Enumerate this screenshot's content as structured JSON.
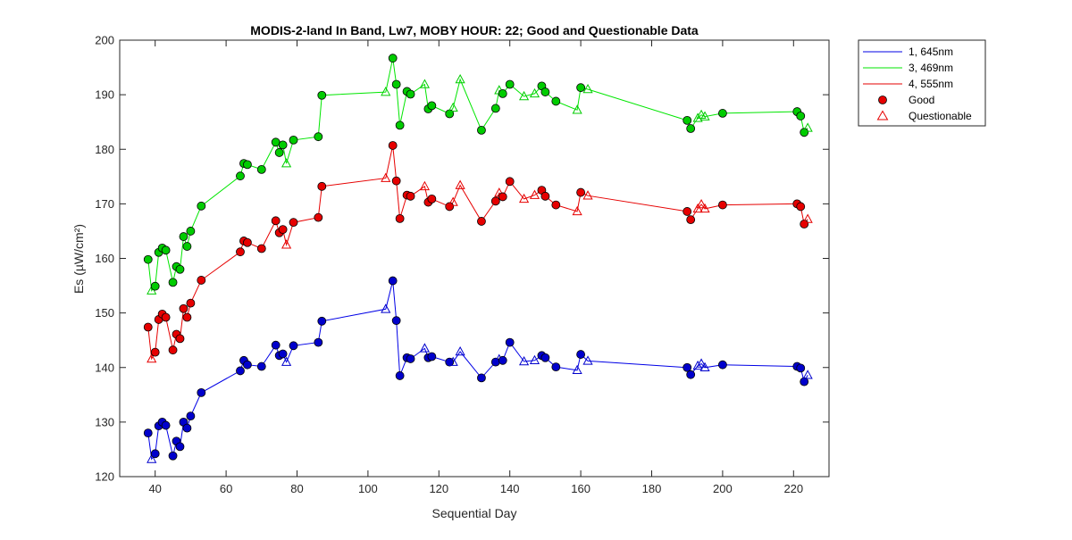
{
  "chart_data": {
    "type": "line",
    "title": "MODIS-2-land In Band,  Lw7, MOBY HOUR: 22;  Good and Questionable Data",
    "xlabel": "Sequential Day",
    "ylabel": "Es (µW/cm²)",
    "xlim": [
      30,
      230
    ],
    "ylim": [
      120,
      200
    ],
    "xticks": [
      40,
      60,
      80,
      100,
      120,
      140,
      160,
      180,
      200,
      220
    ],
    "yticks": [
      120,
      130,
      140,
      150,
      160,
      170,
      180,
      190,
      200
    ],
    "grid": false,
    "legend_position": "outside-top-right",
    "legend": {
      "good_label": "Good",
      "questionable_label": "Questionable"
    },
    "series": [
      {
        "name": "1, 645nm",
        "line_color": "#0000e6",
        "marker_color": "#0000cc",
        "points": [
          {
            "x": 38,
            "y": 128.0,
            "q": false
          },
          {
            "x": 39,
            "y": 123.2,
            "q": true
          },
          {
            "x": 40,
            "y": 124.2,
            "q": false
          },
          {
            "x": 41,
            "y": 129.3,
            "q": false
          },
          {
            "x": 42,
            "y": 130.0,
            "q": false
          },
          {
            "x": 43,
            "y": 129.4,
            "q": false
          },
          {
            "x": 45,
            "y": 123.8,
            "q": false
          },
          {
            "x": 46,
            "y": 126.5,
            "q": false
          },
          {
            "x": 47,
            "y": 125.5,
            "q": false
          },
          {
            "x": 48,
            "y": 130.0,
            "q": false
          },
          {
            "x": 49,
            "y": 128.9,
            "q": false
          },
          {
            "x": 50,
            "y": 131.1,
            "q": false
          },
          {
            "x": 53,
            "y": 135.4,
            "q": false
          },
          {
            "x": 64,
            "y": 139.4,
            "q": false
          },
          {
            "x": 65,
            "y": 141.3,
            "q": false
          },
          {
            "x": 66,
            "y": 140.5,
            "q": false
          },
          {
            "x": 70,
            "y": 140.2,
            "q": false
          },
          {
            "x": 74,
            "y": 144.1,
            "q": false
          },
          {
            "x": 75,
            "y": 142.2,
            "q": false
          },
          {
            "x": 76,
            "y": 142.5,
            "q": false
          },
          {
            "x": 77,
            "y": 141.0,
            "q": true
          },
          {
            "x": 79,
            "y": 144.0,
            "q": false
          },
          {
            "x": 86,
            "y": 144.6,
            "q": false
          },
          {
            "x": 87,
            "y": 148.5,
            "q": false
          },
          {
            "x": 105,
            "y": 150.7,
            "q": true
          },
          {
            "x": 107,
            "y": 155.9,
            "q": false
          },
          {
            "x": 108,
            "y": 148.6,
            "q": false
          },
          {
            "x": 109,
            "y": 138.5,
            "q": false
          },
          {
            "x": 111,
            "y": 141.8,
            "q": false
          },
          {
            "x": 112,
            "y": 141.6,
            "q": false
          },
          {
            "x": 116,
            "y": 143.5,
            "q": true
          },
          {
            "x": 117,
            "y": 141.8,
            "q": false
          },
          {
            "x": 118,
            "y": 142.0,
            "q": false
          },
          {
            "x": 123,
            "y": 141.0,
            "q": false
          },
          {
            "x": 124,
            "y": 141.0,
            "q": true
          },
          {
            "x": 126,
            "y": 142.9,
            "q": true
          },
          {
            "x": 132,
            "y": 138.1,
            "q": false
          },
          {
            "x": 136,
            "y": 141.0,
            "q": false
          },
          {
            "x": 137,
            "y": 141.5,
            "q": true
          },
          {
            "x": 138,
            "y": 141.3,
            "q": false
          },
          {
            "x": 140,
            "y": 144.6,
            "q": false
          },
          {
            "x": 144,
            "y": 141.1,
            "q": true
          },
          {
            "x": 147,
            "y": 141.3,
            "q": true
          },
          {
            "x": 149,
            "y": 142.2,
            "q": false
          },
          {
            "x": 150,
            "y": 141.8,
            "q": false
          },
          {
            "x": 153,
            "y": 140.1,
            "q": false
          },
          {
            "x": 159,
            "y": 139.5,
            "q": true
          },
          {
            "x": 160,
            "y": 142.4,
            "q": false
          },
          {
            "x": 162,
            "y": 141.2,
            "q": true
          },
          {
            "x": 190,
            "y": 140.0,
            "q": false
          },
          {
            "x": 191,
            "y": 138.7,
            "q": false
          },
          {
            "x": 193,
            "y": 140.3,
            "q": true
          },
          {
            "x": 194,
            "y": 140.7,
            "q": true
          },
          {
            "x": 195,
            "y": 140.0,
            "q": true
          },
          {
            "x": 200,
            "y": 140.5,
            "q": false
          },
          {
            "x": 221,
            "y": 140.2,
            "q": false
          },
          {
            "x": 222,
            "y": 139.9,
            "q": false
          },
          {
            "x": 223,
            "y": 137.4,
            "q": false
          },
          {
            "x": 224,
            "y": 138.6,
            "q": true
          }
        ]
      },
      {
        "name": "3, 469nm",
        "line_color": "#00e600",
        "marker_color": "#00cc00",
        "points": [
          {
            "x": 38,
            "y": 159.8,
            "q": false
          },
          {
            "x": 39,
            "y": 154.1,
            "q": true
          },
          {
            "x": 40,
            "y": 154.9,
            "q": false
          },
          {
            "x": 41,
            "y": 161.1,
            "q": false
          },
          {
            "x": 42,
            "y": 161.9,
            "q": false
          },
          {
            "x": 43,
            "y": 161.5,
            "q": false
          },
          {
            "x": 45,
            "y": 155.6,
            "q": false
          },
          {
            "x": 46,
            "y": 158.5,
            "q": false
          },
          {
            "x": 47,
            "y": 158.0,
            "q": false
          },
          {
            "x": 48,
            "y": 164.0,
            "q": false
          },
          {
            "x": 49,
            "y": 162.2,
            "q": false
          },
          {
            "x": 50,
            "y": 165.0,
            "q": false
          },
          {
            "x": 53,
            "y": 169.6,
            "q": false
          },
          {
            "x": 64,
            "y": 175.1,
            "q": false
          },
          {
            "x": 65,
            "y": 177.4,
            "q": false
          },
          {
            "x": 66,
            "y": 177.2,
            "q": false
          },
          {
            "x": 70,
            "y": 176.3,
            "q": false
          },
          {
            "x": 74,
            "y": 181.3,
            "q": false
          },
          {
            "x": 75,
            "y": 179.4,
            "q": false
          },
          {
            "x": 76,
            "y": 180.8,
            "q": false
          },
          {
            "x": 77,
            "y": 177.4,
            "q": true
          },
          {
            "x": 79,
            "y": 181.7,
            "q": false
          },
          {
            "x": 86,
            "y": 182.3,
            "q": false
          },
          {
            "x": 87,
            "y": 189.9,
            "q": false
          },
          {
            "x": 105,
            "y": 190.5,
            "q": true
          },
          {
            "x": 107,
            "y": 196.7,
            "q": false
          },
          {
            "x": 108,
            "y": 191.9,
            "q": false
          },
          {
            "x": 109,
            "y": 184.4,
            "q": false
          },
          {
            "x": 111,
            "y": 190.6,
            "q": false
          },
          {
            "x": 112,
            "y": 190.1,
            "q": false
          },
          {
            "x": 116,
            "y": 191.9,
            "q": true
          },
          {
            "x": 117,
            "y": 187.4,
            "q": false
          },
          {
            "x": 118,
            "y": 188.0,
            "q": false
          },
          {
            "x": 123,
            "y": 186.5,
            "q": false
          },
          {
            "x": 124,
            "y": 187.6,
            "q": true
          },
          {
            "x": 126,
            "y": 192.8,
            "q": true
          },
          {
            "x": 132,
            "y": 183.5,
            "q": false
          },
          {
            "x": 136,
            "y": 187.5,
            "q": false
          },
          {
            "x": 137,
            "y": 190.8,
            "q": true
          },
          {
            "x": 138,
            "y": 190.2,
            "q": false
          },
          {
            "x": 140,
            "y": 191.9,
            "q": false
          },
          {
            "x": 144,
            "y": 189.7,
            "q": true
          },
          {
            "x": 147,
            "y": 190.2,
            "q": true
          },
          {
            "x": 149,
            "y": 191.6,
            "q": false
          },
          {
            "x": 150,
            "y": 190.5,
            "q": false
          },
          {
            "x": 153,
            "y": 188.8,
            "q": false
          },
          {
            "x": 159,
            "y": 187.2,
            "q": true
          },
          {
            "x": 160,
            "y": 191.3,
            "q": false
          },
          {
            "x": 162,
            "y": 191.0,
            "q": true
          },
          {
            "x": 190,
            "y": 185.3,
            "q": false
          },
          {
            "x": 191,
            "y": 183.8,
            "q": false
          },
          {
            "x": 193,
            "y": 185.7,
            "q": true
          },
          {
            "x": 194,
            "y": 186.3,
            "q": true
          },
          {
            "x": 195,
            "y": 186.0,
            "q": true
          },
          {
            "x": 200,
            "y": 186.6,
            "q": false
          },
          {
            "x": 221,
            "y": 186.9,
            "q": false
          },
          {
            "x": 222,
            "y": 186.1,
            "q": false
          },
          {
            "x": 223,
            "y": 183.1,
            "q": false
          },
          {
            "x": 224,
            "y": 183.9,
            "q": true
          }
        ]
      },
      {
        "name": "4, 555nm",
        "line_color": "#e60000",
        "marker_color": "#e60000",
        "points": [
          {
            "x": 38,
            "y": 147.4,
            "q": false
          },
          {
            "x": 39,
            "y": 141.6,
            "q": true
          },
          {
            "x": 40,
            "y": 142.8,
            "q": false
          },
          {
            "x": 41,
            "y": 148.8,
            "q": false
          },
          {
            "x": 42,
            "y": 149.8,
            "q": false
          },
          {
            "x": 43,
            "y": 149.2,
            "q": false
          },
          {
            "x": 45,
            "y": 143.2,
            "q": false
          },
          {
            "x": 46,
            "y": 146.1,
            "q": false
          },
          {
            "x": 47,
            "y": 145.3,
            "q": false
          },
          {
            "x": 48,
            "y": 150.8,
            "q": false
          },
          {
            "x": 49,
            "y": 149.2,
            "q": false
          },
          {
            "x": 50,
            "y": 151.8,
            "q": false
          },
          {
            "x": 53,
            "y": 156.0,
            "q": false
          },
          {
            "x": 64,
            "y": 161.2,
            "q": false
          },
          {
            "x": 65,
            "y": 163.2,
            "q": false
          },
          {
            "x": 66,
            "y": 162.9,
            "q": false
          },
          {
            "x": 70,
            "y": 161.8,
            "q": false
          },
          {
            "x": 74,
            "y": 166.9,
            "q": false
          },
          {
            "x": 75,
            "y": 164.7,
            "q": false
          },
          {
            "x": 76,
            "y": 165.3,
            "q": false
          },
          {
            "x": 77,
            "y": 162.5,
            "q": true
          },
          {
            "x": 79,
            "y": 166.6,
            "q": false
          },
          {
            "x": 86,
            "y": 167.5,
            "q": false
          },
          {
            "x": 87,
            "y": 173.2,
            "q": false
          },
          {
            "x": 105,
            "y": 174.7,
            "q": true
          },
          {
            "x": 107,
            "y": 180.7,
            "q": false
          },
          {
            "x": 108,
            "y": 174.2,
            "q": false
          },
          {
            "x": 109,
            "y": 167.3,
            "q": false
          },
          {
            "x": 111,
            "y": 171.6,
            "q": false
          },
          {
            "x": 112,
            "y": 171.4,
            "q": false
          },
          {
            "x": 116,
            "y": 173.2,
            "q": true
          },
          {
            "x": 117,
            "y": 170.3,
            "q": false
          },
          {
            "x": 118,
            "y": 170.9,
            "q": false
          },
          {
            "x": 123,
            "y": 169.5,
            "q": false
          },
          {
            "x": 124,
            "y": 170.3,
            "q": true
          },
          {
            "x": 126,
            "y": 173.4,
            "q": true
          },
          {
            "x": 132,
            "y": 166.8,
            "q": false
          },
          {
            "x": 136,
            "y": 170.5,
            "q": false
          },
          {
            "x": 137,
            "y": 172.0,
            "q": true
          },
          {
            "x": 138,
            "y": 171.3,
            "q": false
          },
          {
            "x": 140,
            "y": 174.1,
            "q": false
          },
          {
            "x": 144,
            "y": 170.9,
            "q": true
          },
          {
            "x": 147,
            "y": 171.6,
            "q": true
          },
          {
            "x": 149,
            "y": 172.5,
            "q": false
          },
          {
            "x": 150,
            "y": 171.4,
            "q": false
          },
          {
            "x": 153,
            "y": 169.8,
            "q": false
          },
          {
            "x": 159,
            "y": 168.6,
            "q": true
          },
          {
            "x": 160,
            "y": 172.1,
            "q": false
          },
          {
            "x": 162,
            "y": 171.5,
            "q": true
          },
          {
            "x": 190,
            "y": 168.6,
            "q": false
          },
          {
            "x": 191,
            "y": 167.1,
            "q": false
          },
          {
            "x": 193,
            "y": 169.1,
            "q": true
          },
          {
            "x": 194,
            "y": 169.9,
            "q": true
          },
          {
            "x": 195,
            "y": 169.1,
            "q": true
          },
          {
            "x": 200,
            "y": 169.8,
            "q": false
          },
          {
            "x": 221,
            "y": 170.0,
            "q": false
          },
          {
            "x": 222,
            "y": 169.5,
            "q": false
          },
          {
            "x": 223,
            "y": 166.3,
            "q": false
          },
          {
            "x": 224,
            "y": 167.2,
            "q": true
          }
        ]
      }
    ]
  }
}
